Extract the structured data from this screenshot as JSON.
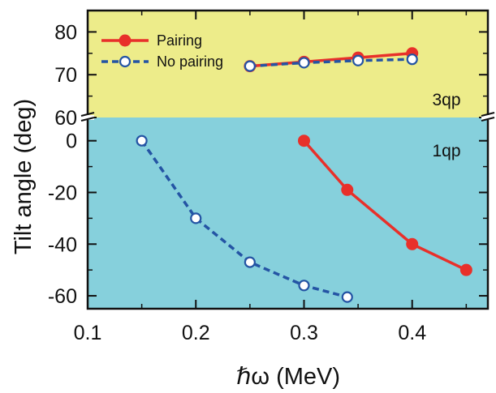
{
  "chart_data": {
    "type": "line",
    "xlabel": "ℏω (MeV)",
    "ylabel": "Tilt angle (deg)",
    "xlim": [
      0.1,
      0.47
    ],
    "x_ticks": [
      "0.1",
      "0.2",
      "0.3",
      "0.4"
    ],
    "x_tick_values": [
      0.1,
      0.2,
      0.3,
      0.4
    ],
    "grid": false,
    "legend_position": "top-left",
    "panels": [
      {
        "label": "3qp",
        "background": "#EDEC8A",
        "ylim": [
          60,
          85
        ],
        "y_ticks": [
          "60",
          "70",
          "80"
        ],
        "y_tick_values": [
          60,
          70,
          80
        ],
        "series": [
          {
            "name": "Pairing",
            "color": "#E8302A",
            "style": "solid",
            "marker": "filled-circle",
            "x": [
              0.25,
              0.3,
              0.35,
              0.4
            ],
            "y": [
              72.0,
              73.0,
              74.0,
              75.0
            ]
          },
          {
            "name": "No pairing",
            "color": "#2454A4",
            "style": "dashed",
            "marker": "open-circle",
            "x": [
              0.25,
              0.3,
              0.35,
              0.4
            ],
            "y": [
              72.0,
              72.8,
              73.3,
              73.6
            ]
          }
        ]
      },
      {
        "label": "1qp",
        "background": "#86D0DC",
        "ylim": [
          -65,
          9
        ],
        "y_ticks": [
          "0",
          "-20",
          "-40",
          "-60"
        ],
        "y_tick_values": [
          0,
          -20,
          -40,
          -60
        ],
        "series": [
          {
            "name": "Pairing",
            "color": "#E8302A",
            "style": "solid",
            "marker": "filled-circle",
            "x": [
              0.3,
              0.34,
              0.4,
              0.45
            ],
            "y": [
              0,
              -19,
              -40,
              -50
            ]
          },
          {
            "name": "No pairing",
            "color": "#2454A4",
            "style": "dashed",
            "marker": "open-circle",
            "x": [
              0.15,
              0.2,
              0.25,
              0.3,
              0.34
            ],
            "y": [
              0,
              -30,
              -47,
              -56,
              -60.5
            ]
          }
        ]
      }
    ],
    "legend": [
      {
        "name": "Pairing",
        "color": "#E8302A",
        "style": "solid",
        "marker": "filled-circle"
      },
      {
        "name": "No pairing",
        "color": "#2454A4",
        "style": "dashed",
        "marker": "open-circle"
      }
    ]
  }
}
